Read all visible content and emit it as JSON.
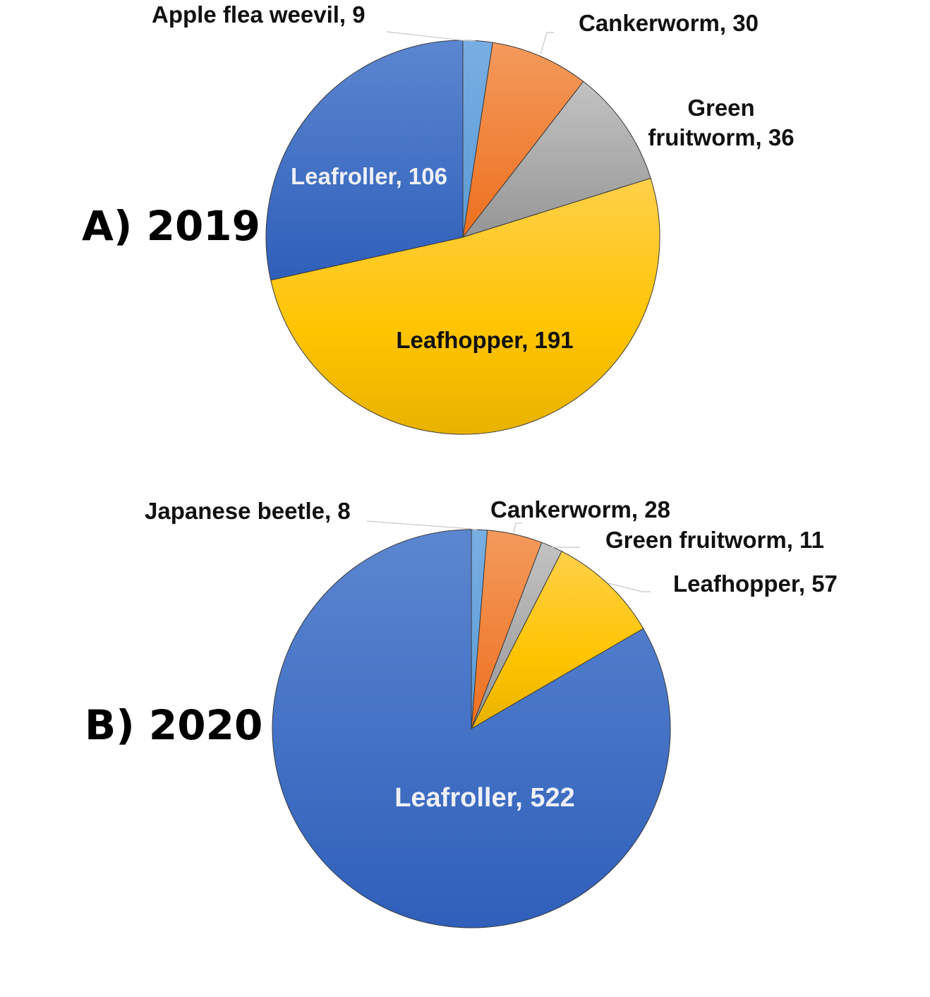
{
  "chart_data": [
    {
      "type": "pie",
      "title": "A) 2019",
      "slices": [
        {
          "label": "Apple flea weevil",
          "value": 9,
          "display": "Apple flea weevil, 9",
          "color": "#5b9bd5"
        },
        {
          "label": "Cankerworm",
          "value": 30,
          "display": "Cankerworm, 30",
          "color": "#ed7d31"
        },
        {
          "label": "Green fruitworm",
          "value": 36,
          "display_lines": [
            "Green",
            "fruitworm, 36"
          ],
          "color": "#a5a5a5"
        },
        {
          "label": "Leafhopper",
          "value": 191,
          "display": "Leafhopper, 191",
          "color": "#ffc000"
        },
        {
          "label": "Leafroller",
          "value": 106,
          "display": "Leafroller, 106",
          "color": "#4472c4"
        }
      ]
    },
    {
      "type": "pie",
      "title": "B) 2020",
      "slices": [
        {
          "label": "Japanese beetle",
          "value": 8,
          "display": "Japanese beetle, 8",
          "color": "#5b9bd5"
        },
        {
          "label": "Cankerworm",
          "value": 28,
          "display": "Cankerworm, 28",
          "color": "#ed7d31"
        },
        {
          "label": "Green fruitworm",
          "value": 11,
          "display": "Green fruitworm, 11",
          "color": "#a5a5a5"
        },
        {
          "label": "Leafhopper",
          "value": 57,
          "display": "Leafhopper, 57",
          "color": "#ffc000"
        },
        {
          "label": "Leafroller",
          "value": 522,
          "display": "Leafroller, 522",
          "color": "#4472c4"
        }
      ]
    }
  ]
}
